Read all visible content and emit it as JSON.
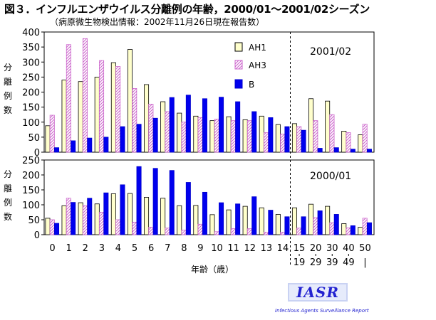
{
  "title": "図３．インフルエンザウイルス分離例の年齢，2000/01～2001/02シーズン",
  "subtitle": "（病原微生物検出情報：2002年11月26日現在報告数）",
  "ylabel_chars": [
    "分",
    "離",
    "例",
    "数"
  ],
  "xlabel": "年齢（歳）",
  "logo": {
    "text": "IASR",
    "subtext": "Infectious Agents Surveillance Report"
  },
  "colors": {
    "AH1": "#ffffcc",
    "AH3_stripe": "#cc66cc",
    "B": "#0000ee",
    "bg": "#ffffff"
  },
  "chart_data": [
    {
      "type": "bar",
      "season_label": "2001/02",
      "categories": [
        "0",
        "1",
        "2",
        "3",
        "4",
        "5",
        "6",
        "7",
        "8",
        "9",
        "10",
        "11",
        "12",
        "13",
        "14",
        "15-19",
        "20-29",
        "30-39",
        "40-49",
        "50-"
      ],
      "x_tick_labels": [
        [
          "0"
        ],
        [
          "1"
        ],
        [
          "2"
        ],
        [
          "3"
        ],
        [
          "4"
        ],
        [
          "5"
        ],
        [
          "6"
        ],
        [
          "7"
        ],
        [
          "8"
        ],
        [
          "9"
        ],
        [
          "10"
        ],
        [
          "11"
        ],
        [
          "12"
        ],
        [
          "13"
        ],
        [
          "14"
        ],
        [
          "15",
          "19"
        ],
        [
          "20",
          "29"
        ],
        [
          "30",
          "39"
        ],
        [
          "40",
          "49"
        ],
        [
          "50",
          "|"
        ]
      ],
      "ylim": [
        0,
        400
      ],
      "yticks": [
        0,
        50,
        100,
        150,
        200,
        250,
        300,
        350,
        400
      ],
      "ytick_labels": [
        "0",
        "50",
        "100",
        "150",
        "200",
        "250",
        "300",
        "350",
        "400"
      ],
      "legend": {
        "position": "top-center",
        "entries": [
          "AH1",
          "AH3",
          "B"
        ]
      },
      "series": [
        {
          "name": "AH1",
          "values": [
            88,
            240,
            235,
            250,
            298,
            342,
            225,
            168,
            130,
            120,
            105,
            118,
            108,
            120,
            92,
            95,
            178,
            170,
            70,
            58
          ]
        },
        {
          "name": "AH3",
          "values": [
            123,
            358,
            378,
            305,
            285,
            212,
            160,
            135,
            100,
            115,
            110,
            105,
            105,
            65,
            60,
            85,
            105,
            125,
            65,
            93
          ]
        },
        {
          "name": "B",
          "values": [
            15,
            38,
            47,
            50,
            85,
            93,
            113,
            182,
            190,
            178,
            183,
            168,
            135,
            115,
            85,
            73,
            13,
            15,
            10,
            10
          ]
        }
      ]
    },
    {
      "type": "bar",
      "season_label": "2000/01",
      "categories": [
        "0",
        "1",
        "2",
        "3",
        "4",
        "5",
        "6",
        "7",
        "8",
        "9",
        "10",
        "11",
        "12",
        "13",
        "14",
        "15-19",
        "20-29",
        "30-39",
        "40-49",
        "50-"
      ],
      "ylim": [
        0,
        250
      ],
      "yticks": [
        0,
        50,
        100,
        150,
        200,
        250
      ],
      "ytick_labels": [
        "0",
        "50",
        "100",
        "150",
        "200",
        "250"
      ],
      "series": [
        {
          "name": "AH1",
          "values": [
            55,
            97,
            107,
            103,
            137,
            138,
            125,
            122,
            97,
            98,
            67,
            83,
            95,
            90,
            68,
            90,
            102,
            95,
            37,
            25
          ]
        },
        {
          "name": "AH3",
          "values": [
            50,
            122,
            97,
            75,
            50,
            42,
            25,
            22,
            15,
            35,
            10,
            20,
            20,
            8,
            8,
            22,
            57,
            40,
            23,
            55
          ]
        },
        {
          "name": "B",
          "values": [
            38,
            108,
            122,
            140,
            167,
            228,
            222,
            215,
            175,
            142,
            107,
            103,
            127,
            82,
            60,
            60,
            80,
            68,
            30,
            40
          ]
        }
      ]
    }
  ]
}
